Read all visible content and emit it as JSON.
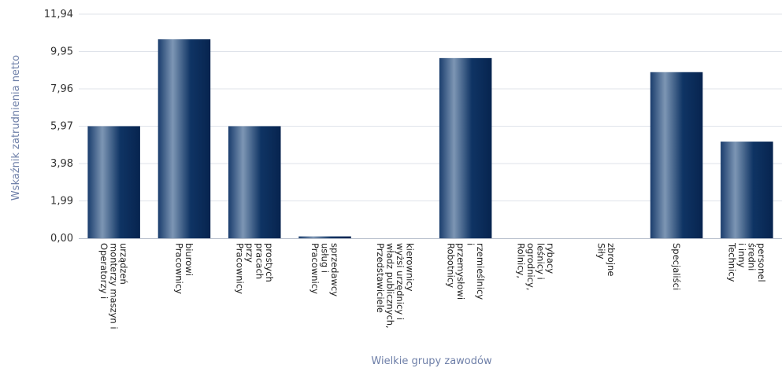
{
  "chart_data": {
    "type": "bar",
    "title": "",
    "xlabel": "Wielkie grupy zawodów",
    "ylabel": "Wskaźnik zatrudnienia netto",
    "ylim": [
      0,
      11.94
    ],
    "yticks": [
      "0,00",
      "1,99",
      "3,98",
      "5,97",
      "7,96",
      "9,95",
      "11,94"
    ],
    "categories": [
      [
        "Operatorzy i",
        "monterzy maszyn i",
        "urządzeń"
      ],
      [
        "Pracownicy",
        "biurowi"
      ],
      [
        "Pracownicy",
        "przy",
        "pracach",
        "prostych"
      ],
      [
        "Pracownicy",
        "usług i",
        "sprzedawcy"
      ],
      [
        "Przedstawiciele",
        "władz publicznych,",
        "wyżsi urzędnicy i",
        "kierownicy"
      ],
      [
        "Robotnicy",
        "przemysłowi",
        "i",
        "rzemieślnicy"
      ],
      [
        "Rolnicy,",
        "ogrodnicy,",
        "leśnicy i",
        "rybacy"
      ],
      [
        "Siły",
        "zbrojne"
      ],
      [
        "Specjaliści"
      ],
      [
        "Technicy",
        "i inny",
        "średni",
        "personel"
      ]
    ],
    "values": [
      5.97,
      10.6,
      5.97,
      0.1,
      0,
      9.6,
      0,
      0,
      8.85,
      5.15
    ],
    "grid": true,
    "colors": {
      "bar_dark": "#0d2f5e",
      "bar_light": "#7d96b4",
      "grid": "#dfe3ea",
      "axis": "#b7bfcc",
      "axis_title": "#6e7fa8"
    }
  }
}
